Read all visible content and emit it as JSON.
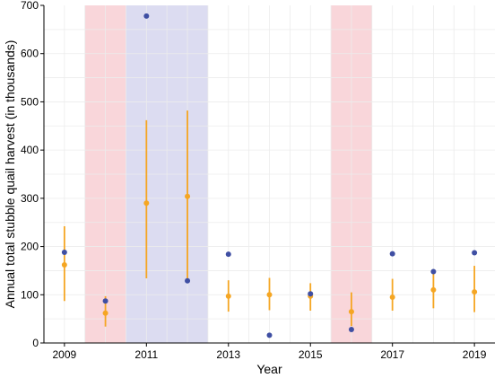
{
  "chart_data": {
    "type": "scatter",
    "title": "",
    "xlabel": "Year",
    "ylabel": "Annual total stubble quail harvest (in thousands)",
    "xlim": [
      2008.5,
      2019.5
    ],
    "ylim": [
      0,
      700
    ],
    "x_ticks": [
      2009,
      2011,
      2013,
      2015,
      2017,
      2019
    ],
    "x_tick_labels": [
      "2009",
      "2011",
      "2013",
      "2015",
      "2017",
      "2019"
    ],
    "y_ticks": [
      0,
      100,
      200,
      300,
      400,
      500,
      600,
      700
    ],
    "y_tick_labels": [
      "0",
      "100",
      "200",
      "300",
      "400",
      "500",
      "600",
      "700"
    ],
    "grid": true,
    "shaded_bands": [
      {
        "x_start": 2009.5,
        "x_end": 2010.5,
        "color": "#f9d6da"
      },
      {
        "x_start": 2010.5,
        "x_end": 2012.5,
        "color": "#dcdcf1"
      },
      {
        "x_start": 2015.5,
        "x_end": 2016.5,
        "color": "#f9d6da"
      }
    ],
    "series": [
      {
        "color": "#f5a623",
        "style": "point-with-errorbar",
        "points": [
          {
            "x": 2009,
            "y": 162,
            "low": 87,
            "high": 242
          },
          {
            "x": 2010,
            "y": 62,
            "low": 34,
            "high": 97
          },
          {
            "x": 2011,
            "y": 290,
            "low": 134,
            "high": 462
          },
          {
            "x": 2012,
            "y": 304,
            "low": 128,
            "high": 482
          },
          {
            "x": 2013,
            "y": 97,
            "low": 65,
            "high": 130
          },
          {
            "x": 2014,
            "y": 100,
            "low": 68,
            "high": 135
          },
          {
            "x": 2015,
            "y": 97,
            "low": 67,
            "high": 124
          },
          {
            "x": 2016,
            "y": 65,
            "low": 35,
            "high": 105
          },
          {
            "x": 2017,
            "y": 95,
            "low": 67,
            "high": 133
          },
          {
            "x": 2018,
            "y": 110,
            "low": 72,
            "high": 153
          },
          {
            "x": 2019,
            "y": 106,
            "low": 64,
            "high": 160
          }
        ]
      },
      {
        "color": "#3f4fa3",
        "style": "point",
        "points": [
          {
            "x": 2009,
            "y": 188
          },
          {
            "x": 2010,
            "y": 87
          },
          {
            "x": 2011,
            "y": 678
          },
          {
            "x": 2012,
            "y": 129
          },
          {
            "x": 2013,
            "y": 184
          },
          {
            "x": 2014,
            "y": 16
          },
          {
            "x": 2015,
            "y": 102
          },
          {
            "x": 2016,
            "y": 28
          },
          {
            "x": 2017,
            "y": 185
          },
          {
            "x": 2018,
            "y": 148
          },
          {
            "x": 2019,
            "y": 187
          }
        ]
      }
    ]
  }
}
